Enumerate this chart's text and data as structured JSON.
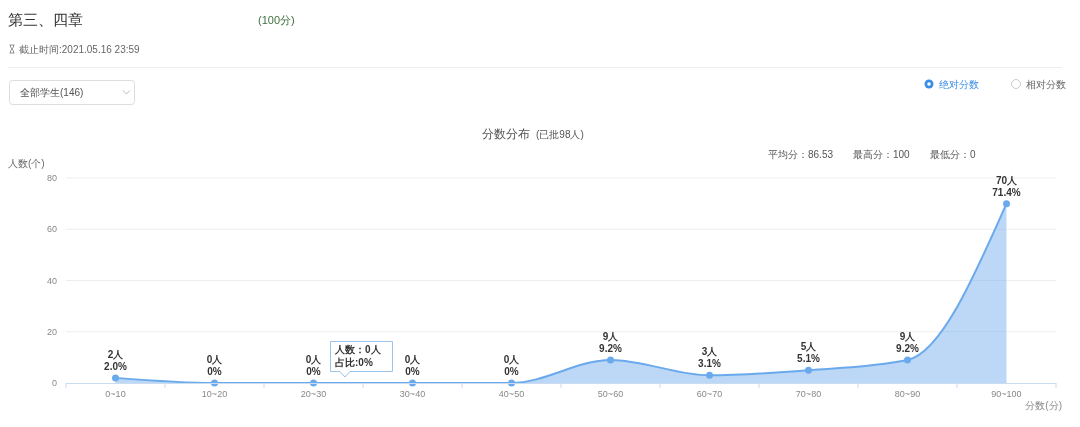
{
  "chart_data": {
    "type": "area",
    "title": "分数分布",
    "subtitle": "(已批98人)",
    "xlabel": "分数(分)",
    "ylabel": "人数(个)",
    "annotations": [
      "第三、四章",
      "(100分)",
      "截止时间:2021.05.16 23:59",
      "全部学生(146)",
      "绝对分数",
      "相对分数",
      "平均分：86.53",
      "最高分：100",
      "最低分：0",
      "人数：0人",
      "占比:0%"
    ],
    "categories": [
      "0~10",
      "10~20",
      "20~30",
      "30~40",
      "40~50",
      "50~60",
      "60~70",
      "70~80",
      "80~90",
      "90~100"
    ],
    "values": [
      2,
      0,
      0,
      0,
      0,
      9,
      3,
      5,
      9,
      70
    ],
    "color": "#6aa9ec",
    "value_labels": [
      "2人\n2.0%",
      "0人\n0%",
      "0人\n0%",
      "0人\n0%",
      "0人\n0%",
      "9人\n9.2%",
      "3人\n3.1%",
      "5人\n5.1%",
      "9人\n9.2%",
      "70人\n71.4%"
    ],
    "ylim": [
      0,
      80
    ],
    "yticks": [
      0,
      20,
      40,
      60,
      80
    ],
    "grid": "y",
    "marker": "circle"
  }
}
